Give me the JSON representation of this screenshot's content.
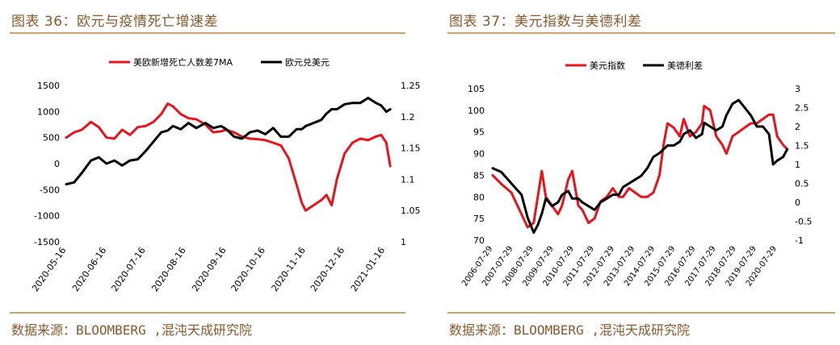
{
  "panels": [
    {
      "title": "图表 36：欧元与疫情死亡增速差",
      "source": "数据来源：BLOOMBERG ,混沌天成研究院"
    },
    {
      "title": "图表 37：美元指数与美德利差",
      "source": "数据来源：BLOOMBERG ,混沌天成研究院"
    }
  ],
  "chart_data": [
    {
      "type": "line",
      "title": "",
      "x_ticks": [
        "2020-05-16",
        "2020-06-16",
        "2020-07-16",
        "2020-08-16",
        "2020-09-16",
        "2020-10-16",
        "2020-11-16",
        "2020-12-16",
        "2021-01-16"
      ],
      "ylim_left": [
        -1500,
        1500
      ],
      "yticks_left": [
        "1500",
        "1000",
        "500",
        "0",
        "-500",
        "-1000",
        "-1500"
      ],
      "ylim_right": [
        1,
        1.25
      ],
      "yticks_right": [
        "1.25",
        "1.2",
        "1.15",
        "1.1",
        "1.05",
        "1"
      ],
      "legend_position": "top",
      "grid": false,
      "series": [
        {
          "name": "美欧新增死亡人数差7MA",
          "axis": "left",
          "color": "#e8141b",
          "x": [
            "2020-05-16",
            "2020-05-22",
            "2020-05-28",
            "2020-06-04",
            "2020-06-10",
            "2020-06-16",
            "2020-06-22",
            "2020-06-28",
            "2020-07-04",
            "2020-07-10",
            "2020-07-16",
            "2020-07-22",
            "2020-07-28",
            "2020-08-02",
            "2020-08-06",
            "2020-08-12",
            "2020-08-18",
            "2020-08-24",
            "2020-08-31",
            "2020-09-06",
            "2020-09-12",
            "2020-09-16",
            "2020-09-22",
            "2020-09-28",
            "2020-10-04",
            "2020-10-10",
            "2020-10-16",
            "2020-10-22",
            "2020-10-28",
            "2020-11-03",
            "2020-11-09",
            "2020-11-13",
            "2020-11-16",
            "2020-11-22",
            "2020-11-28",
            "2020-12-02",
            "2020-12-06",
            "2020-12-10",
            "2020-12-16",
            "2020-12-22",
            "2020-12-28",
            "2021-01-03",
            "2021-01-09",
            "2021-01-13",
            "2021-01-17",
            "2021-01-20"
          ],
          "values": [
            500,
            600,
            650,
            800,
            700,
            500,
            480,
            650,
            550,
            700,
            720,
            800,
            950,
            1150,
            1100,
            950,
            870,
            850,
            750,
            600,
            620,
            650,
            600,
            520,
            480,
            470,
            450,
            400,
            350,
            100,
            -400,
            -750,
            -900,
            -800,
            -700,
            -600,
            -800,
            -300,
            200,
            400,
            480,
            450,
            520,
            550,
            400,
            -50
          ]
        },
        {
          "name": "欧元兑美元",
          "axis": "right",
          "color": "#000000",
          "x": [
            "2020-05-16",
            "2020-05-22",
            "2020-05-28",
            "2020-06-04",
            "2020-06-10",
            "2020-06-16",
            "2020-06-22",
            "2020-06-28",
            "2020-07-04",
            "2020-07-10",
            "2020-07-16",
            "2020-07-22",
            "2020-07-28",
            "2020-08-02",
            "2020-08-06",
            "2020-08-12",
            "2020-08-18",
            "2020-08-24",
            "2020-08-31",
            "2020-09-06",
            "2020-09-12",
            "2020-09-16",
            "2020-09-22",
            "2020-09-28",
            "2020-10-04",
            "2020-10-10",
            "2020-10-16",
            "2020-10-22",
            "2020-10-28",
            "2020-11-03",
            "2020-11-09",
            "2020-11-13",
            "2020-11-16",
            "2020-11-22",
            "2020-11-28",
            "2020-12-02",
            "2020-12-06",
            "2020-12-10",
            "2020-12-16",
            "2020-12-22",
            "2020-12-28",
            "2021-01-03",
            "2021-01-09",
            "2021-01-13",
            "2021-01-17",
            "2021-01-20"
          ],
          "values": [
            1.092,
            1.095,
            1.11,
            1.13,
            1.135,
            1.125,
            1.13,
            1.122,
            1.13,
            1.132,
            1.145,
            1.16,
            1.175,
            1.178,
            1.185,
            1.18,
            1.19,
            1.182,
            1.19,
            1.182,
            1.185,
            1.18,
            1.168,
            1.165,
            1.175,
            1.178,
            1.172,
            1.182,
            1.168,
            1.168,
            1.18,
            1.18,
            1.185,
            1.19,
            1.195,
            1.205,
            1.212,
            1.212,
            1.22,
            1.222,
            1.222,
            1.23,
            1.222,
            1.218,
            1.208,
            1.212
          ]
        }
      ]
    },
    {
      "type": "line",
      "title": "",
      "x_ticks": [
        "2006-07-29",
        "2007-07-29",
        "2008-07-29",
        "2009-07-29",
        "2010-07-29",
        "2011-07-29",
        "2012-07-29",
        "2013-07-29",
        "2014-07-29",
        "2015-07-29",
        "2016-07-29",
        "2017-07-29",
        "2018-07-29",
        "2019-07-29",
        "2020-07-29"
      ],
      "ylim_left": [
        70,
        105
      ],
      "yticks_left": [
        "105",
        "100",
        "95",
        "90",
        "85",
        "80",
        "75",
        "70"
      ],
      "ylim_right": [
        -1,
        3
      ],
      "yticks_right": [
        "3",
        "2.5",
        "2",
        "1.5",
        "1",
        "0.5",
        "0",
        "-0.5",
        "-1"
      ],
      "legend_position": "top",
      "grid": false,
      "series": [
        {
          "name": "美元指数",
          "axis": "left",
          "color": "#e8141b",
          "x": [
            2006.58,
            2007.0,
            2007.5,
            2008.0,
            2008.3,
            2008.6,
            2008.8,
            2009.0,
            2009.2,
            2009.5,
            2009.8,
            2010.0,
            2010.3,
            2010.5,
            2010.8,
            2011.0,
            2011.3,
            2011.6,
            2011.9,
            2012.2,
            2012.5,
            2012.8,
            2013.0,
            2013.3,
            2013.6,
            2013.9,
            2014.2,
            2014.5,
            2014.8,
            2015.0,
            2015.2,
            2015.5,
            2015.8,
            2016.0,
            2016.3,
            2016.6,
            2016.9,
            2017.0,
            2017.3,
            2017.6,
            2017.9,
            2018.1,
            2018.4,
            2018.7,
            2019.0,
            2019.3,
            2019.6,
            2019.9,
            2020.2,
            2020.4,
            2020.6,
            2020.9,
            2021.1
          ],
          "values": [
            85,
            83,
            81,
            76,
            73,
            74,
            80,
            86,
            80,
            78,
            76,
            78,
            84,
            86,
            78,
            77,
            74,
            75,
            79,
            80,
            82,
            80,
            80,
            82,
            81,
            80,
            80,
            81,
            85,
            92,
            97,
            96,
            94,
            98,
            94,
            95,
            97,
            101,
            100,
            94,
            92,
            90,
            94,
            95,
            96,
            97,
            97,
            98,
            99,
            99,
            94,
            92,
            91
          ]
        },
        {
          "name": "美德利差",
          "axis": "right",
          "color": "#000000",
          "x": [
            2006.58,
            2007.0,
            2007.5,
            2008.0,
            2008.3,
            2008.6,
            2008.8,
            2009.0,
            2009.2,
            2009.5,
            2009.8,
            2010.0,
            2010.3,
            2010.5,
            2010.8,
            2011.0,
            2011.3,
            2011.6,
            2011.9,
            2012.2,
            2012.5,
            2012.8,
            2013.0,
            2013.3,
            2013.6,
            2013.9,
            2014.2,
            2014.5,
            2014.8,
            2015.0,
            2015.2,
            2015.5,
            2015.8,
            2016.0,
            2016.3,
            2016.6,
            2016.9,
            2017.0,
            2017.3,
            2017.6,
            2017.9,
            2018.1,
            2018.4,
            2018.7,
            2019.0,
            2019.3,
            2019.6,
            2019.9,
            2020.2,
            2020.4,
            2020.6,
            2020.9,
            2021.1
          ],
          "values": [
            0.9,
            0.8,
            0.5,
            0.2,
            -0.4,
            -0.8,
            -0.6,
            -0.3,
            0.1,
            -0.1,
            0.0,
            0.2,
            0.3,
            0.1,
            0.1,
            0.0,
            -0.1,
            -0.2,
            0.0,
            0.1,
            0.2,
            0.2,
            0.4,
            0.5,
            0.6,
            0.7,
            0.9,
            1.2,
            1.3,
            1.4,
            1.5,
            1.5,
            1.6,
            1.8,
            1.9,
            1.7,
            1.8,
            2.1,
            2.0,
            1.9,
            2.0,
            2.3,
            2.6,
            2.7,
            2.5,
            2.3,
            2.0,
            2.0,
            1.8,
            1.0,
            1.1,
            1.2,
            1.4
          ]
        }
      ]
    }
  ]
}
